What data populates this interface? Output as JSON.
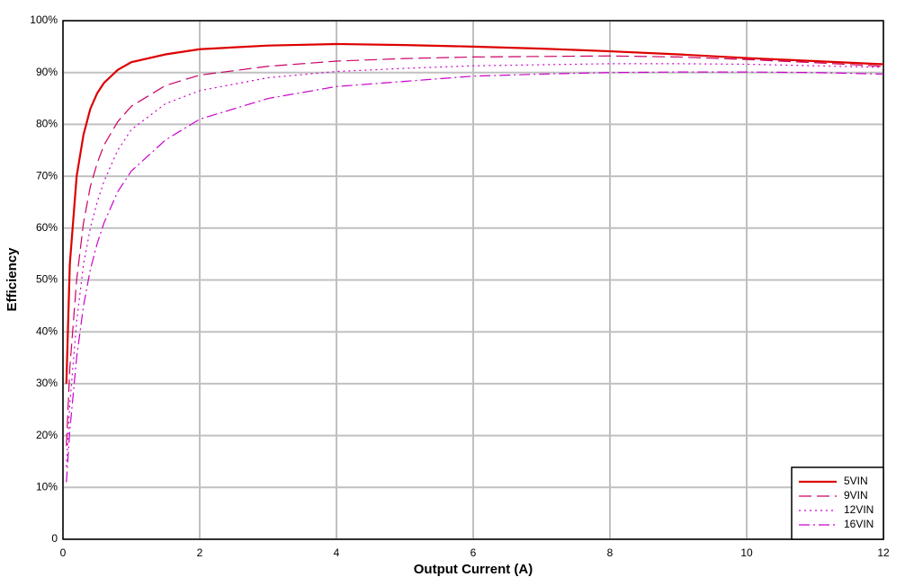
{
  "chart_data": {
    "type": "line",
    "x_label": "Output Current (A)",
    "y_label": "Efficiency",
    "x": [
      0.05,
      0.1,
      0.2,
      0.3,
      0.4,
      0.5,
      0.6,
      0.8,
      1,
      1.5,
      2,
      3,
      4,
      5,
      6,
      7,
      8,
      9,
      10,
      11,
      12
    ],
    "series": [
      {
        "name": "5VIN",
        "color": "#dd0000",
        "dash": "solid",
        "values": [
          30,
          53,
          70,
          78,
          83,
          86,
          88,
          90.5,
          92,
          93.5,
          94.5,
          95.2,
          95.5,
          95.3,
          95,
          94.6,
          94.1,
          93.5,
          92.8,
          92.2,
          91.6
        ]
      },
      {
        "name": "9VIN",
        "color": "#cc0066",
        "dash": "dashed",
        "values": [
          18,
          33,
          50,
          61,
          68,
          72.5,
          76,
          80.5,
          83.5,
          87.5,
          89.5,
          91.2,
          92.2,
          92.7,
          93,
          93.1,
          93.2,
          93,
          92.5,
          91.9,
          91.2
        ]
      },
      {
        "name": "12VIN",
        "color": "#cc00cc",
        "dash": "dotted",
        "values": [
          14,
          26,
          42,
          53,
          60,
          65,
          69,
          75,
          79,
          84,
          86.5,
          89,
          90.2,
          90.8,
          91.3,
          91.5,
          91.7,
          91.7,
          91.6,
          91.3,
          91
        ]
      },
      {
        "name": "16VIN",
        "color": "#cc00cc",
        "dash": "dashdot",
        "values": [
          11,
          21,
          35,
          45,
          52,
          57,
          61,
          67,
          71,
          77,
          81,
          85,
          87.3,
          88.3,
          89.3,
          89.7,
          90,
          90.1,
          90.1,
          90,
          89.7
        ]
      }
    ],
    "xlim": [
      0,
      12
    ],
    "xticks": [
      0,
      2,
      4,
      6,
      8,
      10,
      12
    ],
    "ylim": [
      0,
      100
    ],
    "yticks": [
      0,
      {
        "value": 10,
        "label": "10%"
      },
      {
        "value": 20,
        "label": "20%"
      },
      {
        "value": 30,
        "label": "30%"
      },
      {
        "value": 40,
        "label": "40%"
      },
      {
        "value": 50,
        "label": "50%"
      },
      {
        "value": 60,
        "label": "60%"
      },
      {
        "value": 70,
        "label": "70%"
      },
      {
        "value": 80,
        "label": "80%"
      },
      {
        "value": 90,
        "label": "90%"
      },
      {
        "value": 100,
        "label": "100%"
      }
    ],
    "grid": true,
    "legend": "lower right"
  }
}
